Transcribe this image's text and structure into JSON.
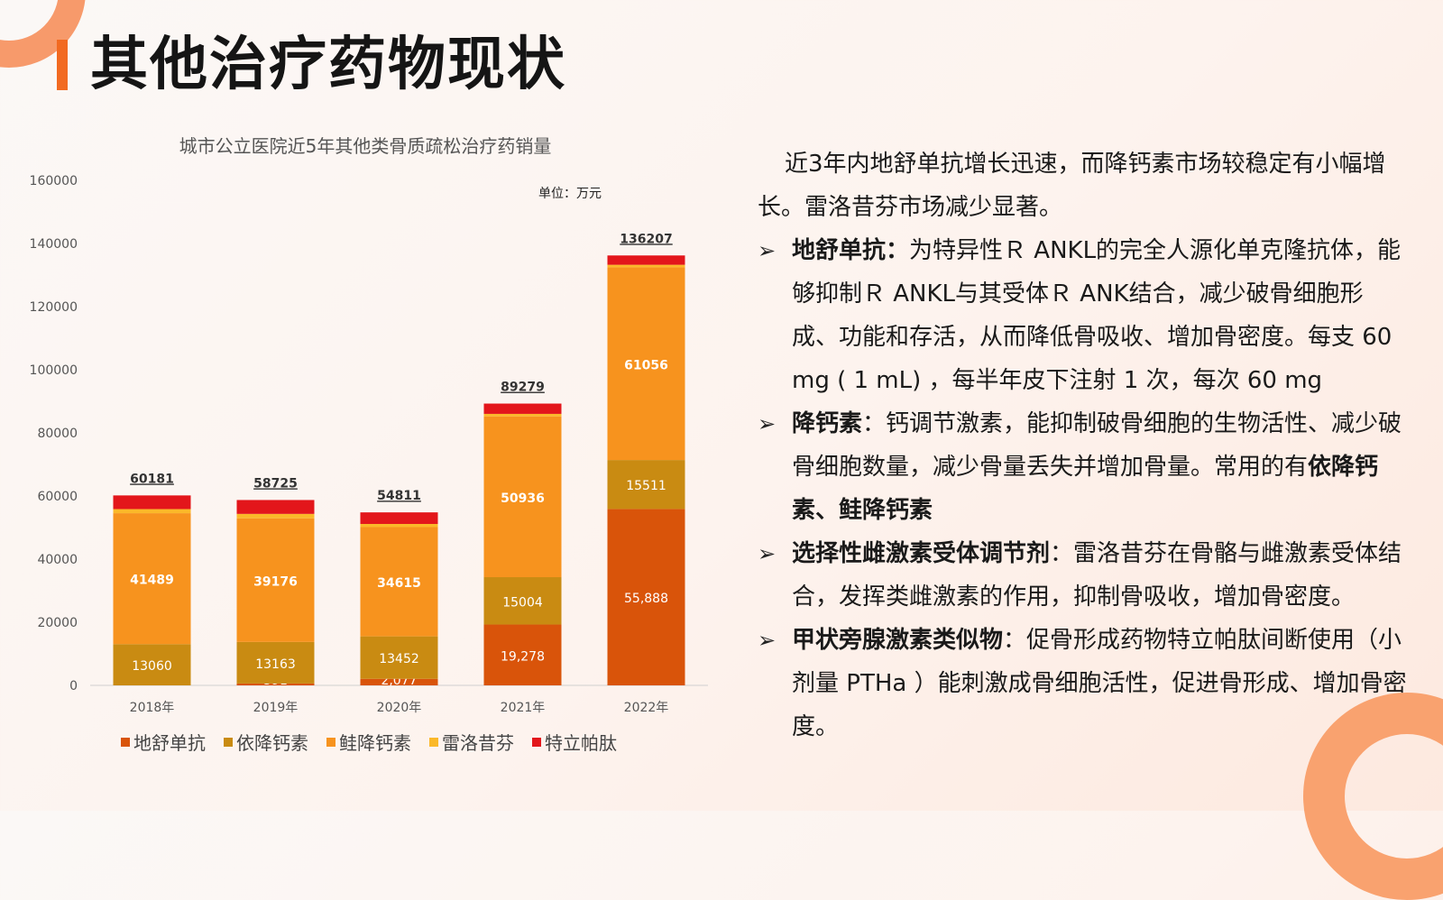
{
  "page": {
    "title": "其他治疗药物现状"
  },
  "chart_data": {
    "type": "bar",
    "stacked": true,
    "title": "城市公立医院近5年其他类骨质疏松治疗药销量",
    "unit_note": "单位：万元",
    "categories": [
      "2018年",
      "2019年",
      "2020年",
      "2021年",
      "2022年"
    ],
    "ylim": [
      0,
      160000
    ],
    "yticks": [
      "0",
      "20000",
      "40000",
      "60000",
      "80000",
      "100000",
      "120000",
      "140000",
      "160000"
    ],
    "grid": false,
    "legend_position": "bottom",
    "series": [
      {
        "name": "地舒单抗",
        "color": "#d9540a",
        "values": [
          0,
          591,
          2077,
          19278,
          55888
        ],
        "labels": [
          "",
          "591",
          "2,077",
          "19,278",
          "55,888"
        ]
      },
      {
        "name": "依降钙素",
        "color": "#c98b12",
        "values": [
          13060,
          13163,
          13452,
          15004,
          15511
        ],
        "labels": [
          "13060",
          "13163",
          "13452",
          "15004",
          "15511"
        ]
      },
      {
        "name": "鲑降钙素",
        "color": "#f7931e",
        "values": [
          41489,
          39176,
          34615,
          50936,
          61056
        ],
        "labels": [
          "41489",
          "39176",
          "34615",
          "50936",
          "61056"
        ]
      },
      {
        "name": "雷洛昔芬",
        "color": "#fbb829",
        "values": [
          1300,
          1400,
          1000,
          800,
          800
        ],
        "labels": [
          "",
          "",
          "",
          "",
          ""
        ]
      },
      {
        "name": "特立帕肽",
        "color": "#e3161b",
        "values": [
          4332,
          4395,
          3667,
          3261,
          2952
        ],
        "labels": [
          "",
          "",
          "",
          "",
          ""
        ]
      }
    ],
    "totals": [
      "60181",
      "58725",
      "54811",
      "89279",
      "136207"
    ]
  },
  "text": {
    "intro": "近3年内地舒单抗增长迅速，而降钙素市场较稳定有小幅增长。雷洛昔芬市场减少显著。",
    "bullets": [
      {
        "head": "地舒单抗：",
        "body": "为特异性Ｒ ANKL的完全人源化单克隆抗体，能够抑制Ｒ ANKL与其受体Ｒ ANK结合，减少破骨细胞形成、功能和存活，从而降低骨吸收、增加骨密度。每支 60 mg ( 1 mL) ，每半年皮下注射 1 次，每次 60 mg",
        "tail": ""
      },
      {
        "head": "降钙素",
        "body": "：钙调节激素，能抑制破骨细胞的生物活性、减少破骨细胞数量，减少骨量丢失并增加骨量。常用的有",
        "tail": "依降钙素、鲑降钙素"
      },
      {
        "head": "选择性雌激素受体调节剂",
        "body": "：雷洛昔芬在骨骼与雌激素受体结合，发挥类雌激素的作用，抑制骨吸收，增加骨密度。",
        "tail": ""
      },
      {
        "head": "甲状旁腺激素类似物",
        "body": "：促骨形成药物特立帕肽间断使用（小剂量 PTHa ）能刺激成骨细胞活性，促进骨形成、增加骨密度。",
        "tail": ""
      }
    ]
  }
}
